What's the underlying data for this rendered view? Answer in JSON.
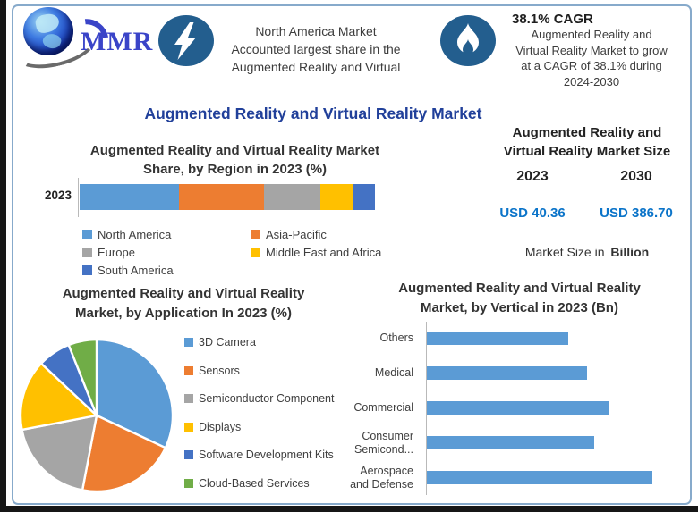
{
  "page": {
    "logo_text": "MMR",
    "main_title": "Augmented Reality and Virtual Reality Market"
  },
  "header": {
    "highlight": {
      "icon": "lightning-bolt-icon",
      "line1": "North America Market",
      "line2": "Accounted largest share in the",
      "line3": "Augmented Reality and Virtual"
    },
    "cagr": {
      "icon": "flame-icon",
      "title": "38.1% CAGR",
      "line1": "Augmented Reality and",
      "line2": "Virtual Reality Market to grow",
      "line3": "at a CAGR of 38.1% during",
      "line4": "2024-2030"
    }
  },
  "region_chart": {
    "title_line1": "Augmented Reality and Virtual Reality Market",
    "title_line2": "Share, by Region in 2023 (%)",
    "row_label": "2023"
  },
  "market_size": {
    "title_line1": "Augmented Reality and",
    "title_line2": "Virtual Reality Market Size",
    "year_left": "2023",
    "year_right": "2030",
    "value_left": "USD 40.36",
    "value_right": "USD 386.70",
    "footnote_text": "Market Size in",
    "footnote_bold": "Billion"
  },
  "application_chart": {
    "title_line1": "Augmented Reality and Virtual Reality",
    "title_line2": "Market, by Application In 2023 (%)"
  },
  "vertical_chart": {
    "title_line1": "Augmented Reality and Virtual Reality",
    "title_line2": "Market, by Vertical in 2023 (Bn)"
  },
  "colors": {
    "badge_blue": "#235e8e",
    "title_navy": "#21409a",
    "value_blue": "#0b74c9",
    "series_blue": "#5B9BD5",
    "series_orange": "#ED7D31",
    "series_gray": "#A5A5A5",
    "series_yellow": "#FFC000",
    "series_dark_blue": "#4472C4",
    "series_green": "#70AD47"
  },
  "chart_data": [
    {
      "id": "region_share",
      "type": "bar",
      "subtype": "stacked-horizontal",
      "title": "Augmented Reality and Virtual Reality Market Share, by Region in 2023 (%)",
      "categories": [
        "2023"
      ],
      "series": [
        {
          "name": "North America",
          "color": "#5B9BD5",
          "values": [
            33.5
          ]
        },
        {
          "name": "Asia-Pacific",
          "color": "#ED7D31",
          "values": [
            29
          ]
        },
        {
          "name": "Europe",
          "color": "#A5A5A5",
          "values": [
            19
          ]
        },
        {
          "name": "Middle East and Africa",
          "color": "#FFC000",
          "values": [
            11
          ]
        },
        {
          "name": "South America",
          "color": "#4472C4",
          "values": [
            7.5
          ]
        }
      ],
      "xlim": [
        0,
        100
      ],
      "legend_position": "bottom",
      "grid": false
    },
    {
      "id": "application_share",
      "type": "pie",
      "title": "Augmented Reality and Virtual Reality Market, by Application In 2023 (%)",
      "labels": [
        "3D Camera",
        "Sensors",
        "Semiconductor Component",
        "Displays",
        "Software Development Kits",
        "Cloud-Based Services"
      ],
      "values": [
        32,
        21,
        19,
        15,
        7,
        6
      ],
      "colors": [
        "#5B9BD5",
        "#ED7D31",
        "#A5A5A5",
        "#FFC000",
        "#4472C4",
        "#70AD47"
      ],
      "legend_position": "right",
      "start_angle_deg": 0
    },
    {
      "id": "vertical_size",
      "type": "bar",
      "subtype": "horizontal",
      "title": "Augmented Reality and Virtual Reality Market, by Vertical in 2023 (Bn)",
      "categories": [
        "Others",
        "Medical",
        "Commercial",
        "Consumer Semicond...",
        "Aerospace and Defense"
      ],
      "category_lines": [
        [
          "Others"
        ],
        [
          "Medical"
        ],
        [
          "Commercial"
        ],
        [
          "Consumer",
          "Semicond..."
        ],
        [
          "Aerospace",
          "and Defense"
        ]
      ],
      "values": [
        6.5,
        7.4,
        8.4,
        7.7,
        10.4
      ],
      "xlim": [
        0,
        10.4
      ],
      "bar_color": "#5B9BD5",
      "grid": false
    }
  ]
}
